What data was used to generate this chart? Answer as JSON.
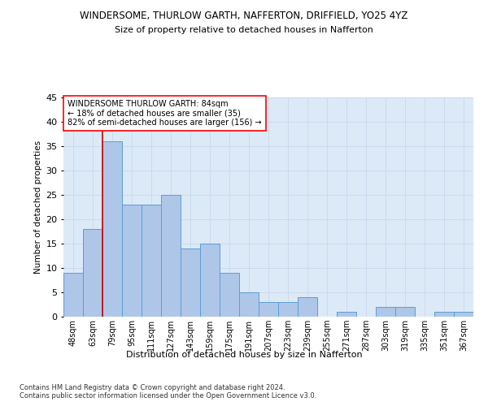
{
  "title": "WINDERSOME, THURLOW GARTH, NAFFERTON, DRIFFIELD, YO25 4YZ",
  "subtitle": "Size of property relative to detached houses in Nafferton",
  "xlabel": "Distribution of detached houses by size in Nafferton",
  "ylabel": "Number of detached properties",
  "categories": [
    "48sqm",
    "63sqm",
    "79sqm",
    "95sqm",
    "111sqm",
    "127sqm",
    "143sqm",
    "159sqm",
    "175sqm",
    "191sqm",
    "207sqm",
    "223sqm",
    "239sqm",
    "255sqm",
    "271sqm",
    "287sqm",
    "303sqm",
    "319sqm",
    "335sqm",
    "351sqm",
    "367sqm"
  ],
  "values": [
    9,
    18,
    36,
    23,
    23,
    25,
    14,
    15,
    9,
    5,
    3,
    3,
    4,
    0,
    1,
    0,
    2,
    2,
    0,
    1,
    1
  ],
  "bar_color": "#aec6e8",
  "bar_edge_color": "#5a9fd4",
  "grid_color": "#c8d8ec",
  "background_color": "#dce9f7",
  "vline_color": "#cc0000",
  "annotation_box_text": "WINDERSOME THURLOW GARTH: 84sqm\n← 18% of detached houses are smaller (35)\n82% of semi-detached houses are larger (156) →",
  "footer_text": "Contains HM Land Registry data © Crown copyright and database right 2024.\nContains public sector information licensed under the Open Government Licence v3.0.",
  "ylim": [
    0,
    45
  ],
  "yticks": [
    0,
    5,
    10,
    15,
    20,
    25,
    30,
    35,
    40,
    45
  ]
}
